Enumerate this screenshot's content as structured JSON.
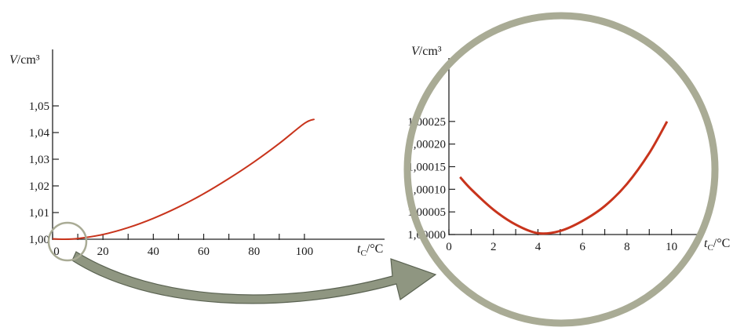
{
  "chart_data": [
    {
      "type": "line",
      "title": "",
      "ylabel": "V/cm³",
      "ylabel_var": "V",
      "ylabel_unit": "/cm³",
      "xlabel": "tC/°C",
      "xlabel_var": "t",
      "xlabel_sub": "C",
      "xlabel_unit": "/°C",
      "xlim": [
        0,
        115
      ],
      "ylim": [
        1.0,
        1.055
      ],
      "x_ticks": [
        0,
        20,
        40,
        60,
        80,
        100
      ],
      "x_tick_labels": [
        "0",
        "20",
        "40",
        "60",
        "80",
        "100"
      ],
      "x_minor_ticks": [
        10,
        30,
        50,
        70,
        90
      ],
      "y_ticks": [
        1.0,
        1.01,
        1.02,
        1.03,
        1.04,
        1.05
      ],
      "y_tick_labels": [
        "1,00",
        "1,01",
        "1,02",
        "1,03",
        "1,04",
        "1,05"
      ],
      "grid": false,
      "series": [
        {
          "color": "#c8341c",
          "x": [
            0,
            4,
            10,
            20,
            30,
            40,
            50,
            60,
            70,
            80,
            90,
            100,
            104
          ],
          "y": [
            1.00013,
            1.0,
            1.00027,
            1.00177,
            1.00435,
            1.00782,
            1.01207,
            1.01705,
            1.02275,
            1.02899,
            1.0359,
            1.04343,
            1.045
          ]
        }
      ],
      "annotation": "circle around origin region"
    },
    {
      "type": "line",
      "title": "",
      "ylabel": "V/cm³",
      "ylabel_var": "V",
      "ylabel_unit": "/cm³",
      "xlabel": "tC/°C",
      "xlabel_var": "t",
      "xlabel_sub": "C",
      "xlabel_unit": "/°C",
      "xlim": [
        0,
        11
      ],
      "ylim": [
        1.0,
        1.0003
      ],
      "x_ticks": [
        0,
        2,
        4,
        6,
        8,
        10
      ],
      "x_tick_labels": [
        "0",
        "2",
        "4",
        "6",
        "8",
        "10"
      ],
      "x_minor_ticks": [
        1,
        3,
        5,
        7,
        9
      ],
      "y_ticks": [
        1.0,
        1.00005,
        1.0001,
        1.00015,
        1.0002,
        1.00025
      ],
      "y_tick_labels": [
        "1,00000",
        "1,00005",
        "1,00010",
        "1,00015",
        "1,00020",
        "1,00025"
      ],
      "grid": false,
      "series": [
        {
          "color": "#c8341c",
          "x": [
            0.5,
            1,
            2,
            3,
            4,
            5,
            6,
            7,
            8,
            9,
            9.8
          ],
          "y": [
            1.000127,
            1.0001,
            1.000055,
            1.000022,
            1.000003,
            1.000008,
            1.00003,
            1.000063,
            1.000112,
            1.00018,
            1.00025
          ]
        }
      ],
      "annotation": "magnified view inside large circle"
    }
  ],
  "decor": {
    "circle_color": "#a9ab95",
    "arrow_color": "#8f9681"
  }
}
